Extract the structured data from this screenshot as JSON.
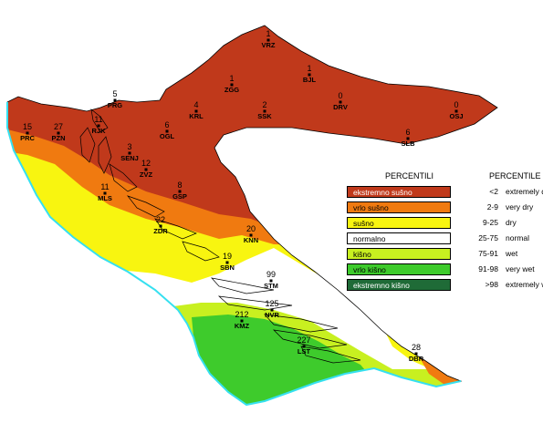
{
  "legend": {
    "header_hr": "PERCENTILI",
    "header_en": "PERCENTILE",
    "classes": [
      {
        "hr": "ekstremno sušno",
        "range": "<2",
        "en": "extremely dry",
        "color": "#c0391b"
      },
      {
        "hr": "vrlo sušno",
        "range": "2-9",
        "en": "very dry",
        "color": "#f07a10"
      },
      {
        "hr": "sušno",
        "range": "9-25",
        "en": "dry",
        "color": "#f8f510"
      },
      {
        "hr": "normalno",
        "range": "25-75",
        "en": "normal",
        "color": "#ffffff"
      },
      {
        "hr": "kišno",
        "range": "75-91",
        "en": "wet",
        "color": "#c8f020"
      },
      {
        "hr": "vrlo kišno",
        "range": "91-98",
        "en": "very wet",
        "color": "#3ecb2c"
      },
      {
        "hr": "ekstremno kišno",
        "range": ">98",
        "en": "extremely wet",
        "color": "#1f6b37"
      }
    ]
  },
  "stations": [
    {
      "code": "VRZ",
      "value": "1"
    },
    {
      "code": "BJL",
      "value": "1"
    },
    {
      "code": "ZGG",
      "value": "1"
    },
    {
      "code": "DRV",
      "value": "0"
    },
    {
      "code": "OSJ",
      "value": "0"
    },
    {
      "code": "PRG",
      "value": "5"
    },
    {
      "code": "KRL",
      "value": "4"
    },
    {
      "code": "SSK",
      "value": "2"
    },
    {
      "code": "OGL",
      "value": "6"
    },
    {
      "code": "SLB",
      "value": "6"
    },
    {
      "code": "PRC",
      "value": "15"
    },
    {
      "code": "PZN",
      "value": "27"
    },
    {
      "code": "RJK",
      "value": "11"
    },
    {
      "code": "SENJ",
      "value": "3"
    },
    {
      "code": "ZVZ",
      "value": "12"
    },
    {
      "code": "GSP",
      "value": "8"
    },
    {
      "code": "MLS",
      "value": "11"
    },
    {
      "code": "ZDR",
      "value": "22"
    },
    {
      "code": "KNN",
      "value": "20"
    },
    {
      "code": "SBN",
      "value": "19"
    },
    {
      "code": "STM",
      "value": "99"
    },
    {
      "code": "NVR",
      "value": "125"
    },
    {
      "code": "KMZ",
      "value": "212"
    },
    {
      "code": "LST",
      "value": "227"
    },
    {
      "code": "DBR",
      "value": "28"
    }
  ]
}
